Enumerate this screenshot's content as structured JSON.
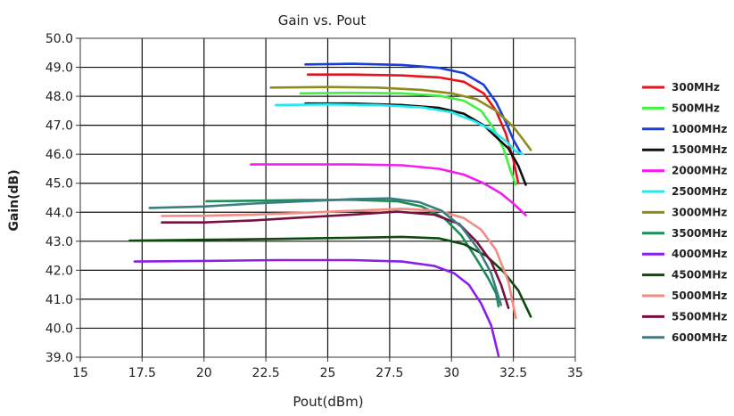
{
  "chart_data": {
    "type": "line",
    "title": "Gain vs. Pout",
    "xlabel": "Pout(dBm)",
    "ylabel": "Gain(dB)",
    "xlim": [
      15,
      35
    ],
    "ylim": [
      39.0,
      50.0
    ],
    "x_ticks": [
      "15",
      "17.5",
      "20",
      "22.5",
      "25",
      "27.5",
      "30",
      "32.5",
      "35"
    ],
    "x_tick_values": [
      15,
      17.5,
      20,
      22.5,
      25,
      27.5,
      30,
      32.5,
      35
    ],
    "y_ticks": [
      "39.0",
      "40.0",
      "41.0",
      "42.0",
      "43.0",
      "44.0",
      "45.0",
      "46.0",
      "47.0",
      "48.0",
      "49.0",
      "50.0"
    ],
    "y_tick_values": [
      39,
      40,
      41,
      42,
      43,
      44,
      45,
      46,
      47,
      48,
      49,
      50
    ],
    "grid": true,
    "legend_position": "right",
    "series": [
      {
        "name": "300MHz",
        "color": "#e8141c",
        "points": [
          [
            24.2,
            48.75
          ],
          [
            26,
            48.75
          ],
          [
            28,
            48.72
          ],
          [
            29.5,
            48.65
          ],
          [
            30.5,
            48.5
          ],
          [
            31.3,
            48.1
          ],
          [
            31.8,
            47.5
          ],
          [
            32.2,
            46.7
          ],
          [
            32.5,
            45.8
          ],
          [
            32.7,
            45.0
          ]
        ]
      },
      {
        "name": "500MHz",
        "color": "#3ef23e",
        "points": [
          [
            23.9,
            48.1
          ],
          [
            26,
            48.12
          ],
          [
            28,
            48.1
          ],
          [
            29.5,
            48.02
          ],
          [
            30.5,
            47.85
          ],
          [
            31.2,
            47.5
          ],
          [
            31.7,
            46.9
          ],
          [
            32.1,
            46.2
          ],
          [
            32.4,
            45.4
          ],
          [
            32.6,
            44.95
          ]
        ]
      },
      {
        "name": "1000MHz",
        "color": "#1a3fd8",
        "points": [
          [
            24.1,
            49.1
          ],
          [
            26,
            49.12
          ],
          [
            28,
            49.08
          ],
          [
            29.5,
            48.98
          ],
          [
            30.5,
            48.8
          ],
          [
            31.3,
            48.4
          ],
          [
            31.8,
            47.8
          ],
          [
            32.2,
            47.1
          ],
          [
            32.5,
            46.5
          ],
          [
            32.8,
            46.05
          ]
        ]
      },
      {
        "name": "1500MHz",
        "color": "#111111",
        "points": [
          [
            24.1,
            47.75
          ],
          [
            26,
            47.75
          ],
          [
            28,
            47.7
          ],
          [
            29.5,
            47.6
          ],
          [
            30.5,
            47.4
          ],
          [
            31.3,
            47.0
          ],
          [
            31.8,
            46.6
          ],
          [
            32.3,
            46.2
          ],
          [
            32.7,
            45.6
          ],
          [
            33.0,
            44.95
          ]
        ]
      },
      {
        "name": "2000MHz",
        "color": "#f01ef0",
        "points": [
          [
            21.9,
            45.65
          ],
          [
            24,
            45.65
          ],
          [
            26,
            45.65
          ],
          [
            28,
            45.62
          ],
          [
            29.5,
            45.5
          ],
          [
            30.5,
            45.3
          ],
          [
            31.3,
            45.0
          ],
          [
            32.0,
            44.65
          ],
          [
            32.5,
            44.3
          ],
          [
            33.0,
            43.9
          ]
        ]
      },
      {
        "name": "2500MHz",
        "color": "#22e8f0",
        "points": [
          [
            22.9,
            47.7
          ],
          [
            25,
            47.72
          ],
          [
            27,
            47.7
          ],
          [
            28.8,
            47.62
          ],
          [
            30,
            47.45
          ],
          [
            30.9,
            47.15
          ],
          [
            31.6,
            46.85
          ],
          [
            32.2,
            46.45
          ],
          [
            32.6,
            46.1
          ],
          [
            32.9,
            46.0
          ]
        ]
      },
      {
        "name": "3000MHz",
        "color": "#8c8c1e",
        "points": [
          [
            22.7,
            48.3
          ],
          [
            25,
            48.32
          ],
          [
            27,
            48.3
          ],
          [
            28.8,
            48.22
          ],
          [
            30,
            48.1
          ],
          [
            31,
            47.9
          ],
          [
            31.8,
            47.5
          ],
          [
            32.5,
            46.95
          ],
          [
            32.9,
            46.5
          ],
          [
            33.2,
            46.15
          ]
        ]
      },
      {
        "name": "3500MHz",
        "color": "#1e8c5a",
        "points": [
          [
            20.1,
            44.38
          ],
          [
            22,
            44.4
          ],
          [
            24,
            44.42
          ],
          [
            26,
            44.43
          ],
          [
            27.8,
            44.38
          ],
          [
            28.8,
            44.2
          ],
          [
            29.7,
            43.8
          ],
          [
            30.4,
            43.2
          ],
          [
            31.0,
            42.4
          ],
          [
            31.5,
            41.7
          ],
          [
            31.8,
            41.2
          ],
          [
            31.9,
            40.75
          ]
        ]
      },
      {
        "name": "4000MHz",
        "color": "#8a1ee8",
        "points": [
          [
            17.2,
            42.3
          ],
          [
            20,
            42.32
          ],
          [
            23,
            42.35
          ],
          [
            26,
            42.35
          ],
          [
            28,
            42.3
          ],
          [
            29.3,
            42.15
          ],
          [
            30.1,
            41.9
          ],
          [
            30.7,
            41.5
          ],
          [
            31.2,
            40.85
          ],
          [
            31.6,
            40.1
          ],
          [
            31.9,
            39.05
          ]
        ]
      },
      {
        "name": "4500MHz",
        "color": "#0e4a0e",
        "points": [
          [
            17.0,
            43.02
          ],
          [
            20,
            43.05
          ],
          [
            23,
            43.08
          ],
          [
            26,
            43.12
          ],
          [
            28,
            43.15
          ],
          [
            29.5,
            43.1
          ],
          [
            30.5,
            42.9
          ],
          [
            31.4,
            42.5
          ],
          [
            32.1,
            41.95
          ],
          [
            32.7,
            41.3
          ],
          [
            33.2,
            40.4
          ]
        ]
      },
      {
        "name": "5000MHz",
        "color": "#f28c82",
        "points": [
          [
            18.3,
            43.87
          ],
          [
            20,
            43.88
          ],
          [
            22,
            43.92
          ],
          [
            24,
            43.98
          ],
          [
            26,
            44.05
          ],
          [
            28,
            44.12
          ],
          [
            29.5,
            44.05
          ],
          [
            30.5,
            43.8
          ],
          [
            31.2,
            43.4
          ],
          [
            31.8,
            42.7
          ],
          [
            32.3,
            41.6
          ],
          [
            32.6,
            40.35
          ]
        ]
      },
      {
        "name": "5500MHz",
        "color": "#7a1040",
        "points": [
          [
            18.3,
            43.65
          ],
          [
            20,
            43.65
          ],
          [
            22,
            43.72
          ],
          [
            24,
            43.82
          ],
          [
            26,
            43.92
          ],
          [
            27.8,
            44.02
          ],
          [
            29.3,
            43.92
          ],
          [
            30.3,
            43.6
          ],
          [
            31.0,
            43.0
          ],
          [
            31.6,
            42.3
          ],
          [
            32.0,
            41.5
          ],
          [
            32.3,
            40.7
          ]
        ]
      },
      {
        "name": "6000MHz",
        "color": "#3a7e84",
        "points": [
          [
            17.8,
            44.15
          ],
          [
            20,
            44.2
          ],
          [
            22,
            44.3
          ],
          [
            24,
            44.38
          ],
          [
            26,
            44.45
          ],
          [
            27.5,
            44.48
          ],
          [
            28.7,
            44.35
          ],
          [
            29.6,
            44.05
          ],
          [
            30.4,
            43.5
          ],
          [
            31.1,
            42.7
          ],
          [
            31.6,
            41.9
          ],
          [
            32.0,
            40.8
          ]
        ]
      }
    ]
  }
}
